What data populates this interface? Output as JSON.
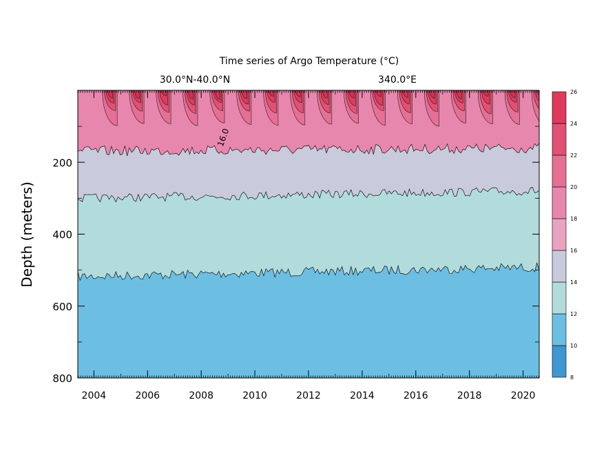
{
  "chart_data": {
    "type": "heatmap",
    "title": "Time series of Argo Temperature (°C)",
    "subtitle_left": "30.0°N-40.0°N",
    "subtitle_right": "340.0°E",
    "xlabel": "",
    "ylabel": "Depth (meters)",
    "xlim": [
      2003.4,
      2020.6
    ],
    "ylim": [
      800,
      0
    ],
    "x_ticks": [
      2004,
      2006,
      2008,
      2010,
      2012,
      2014,
      2016,
      2018,
      2020
    ],
    "x_tick_labels": [
      "2004",
      "2006",
      "2008",
      "2010",
      "2012",
      "2014",
      "2016",
      "2018",
      "2020"
    ],
    "y_ticks": [
      200,
      400,
      600,
      800
    ],
    "y_tick_labels": [
      "200",
      "400",
      "600",
      "800"
    ],
    "y_minor_ticks": [
      100,
      300,
      500,
      700
    ],
    "contour_label": "16.0",
    "contour_label_x": 2008.8,
    "contour_label_y": 158,
    "colorbar": {
      "levels": [
        8,
        10,
        12,
        14,
        16,
        18,
        20,
        22,
        24,
        26
      ],
      "labels": [
        "8",
        "10",
        "12",
        "14",
        "16",
        "18",
        "20",
        "22",
        "24",
        "26"
      ],
      "colors": [
        "#3e97d1",
        "#6cbfe3",
        "#b1dcdb",
        "#c9cadb",
        "#e8a3c0",
        "#e887ad",
        "#e56f95",
        "#e25074",
        "#df3a5c"
      ]
    },
    "isotherms": [
      {
        "temperature": 10,
        "mean_depth": 800
      },
      {
        "temperature": 12,
        "mean_depth": 505
      },
      {
        "temperature": 14,
        "mean_depth": 290
      },
      {
        "temperature": 16,
        "mean_depth": 160
      }
    ]
  }
}
